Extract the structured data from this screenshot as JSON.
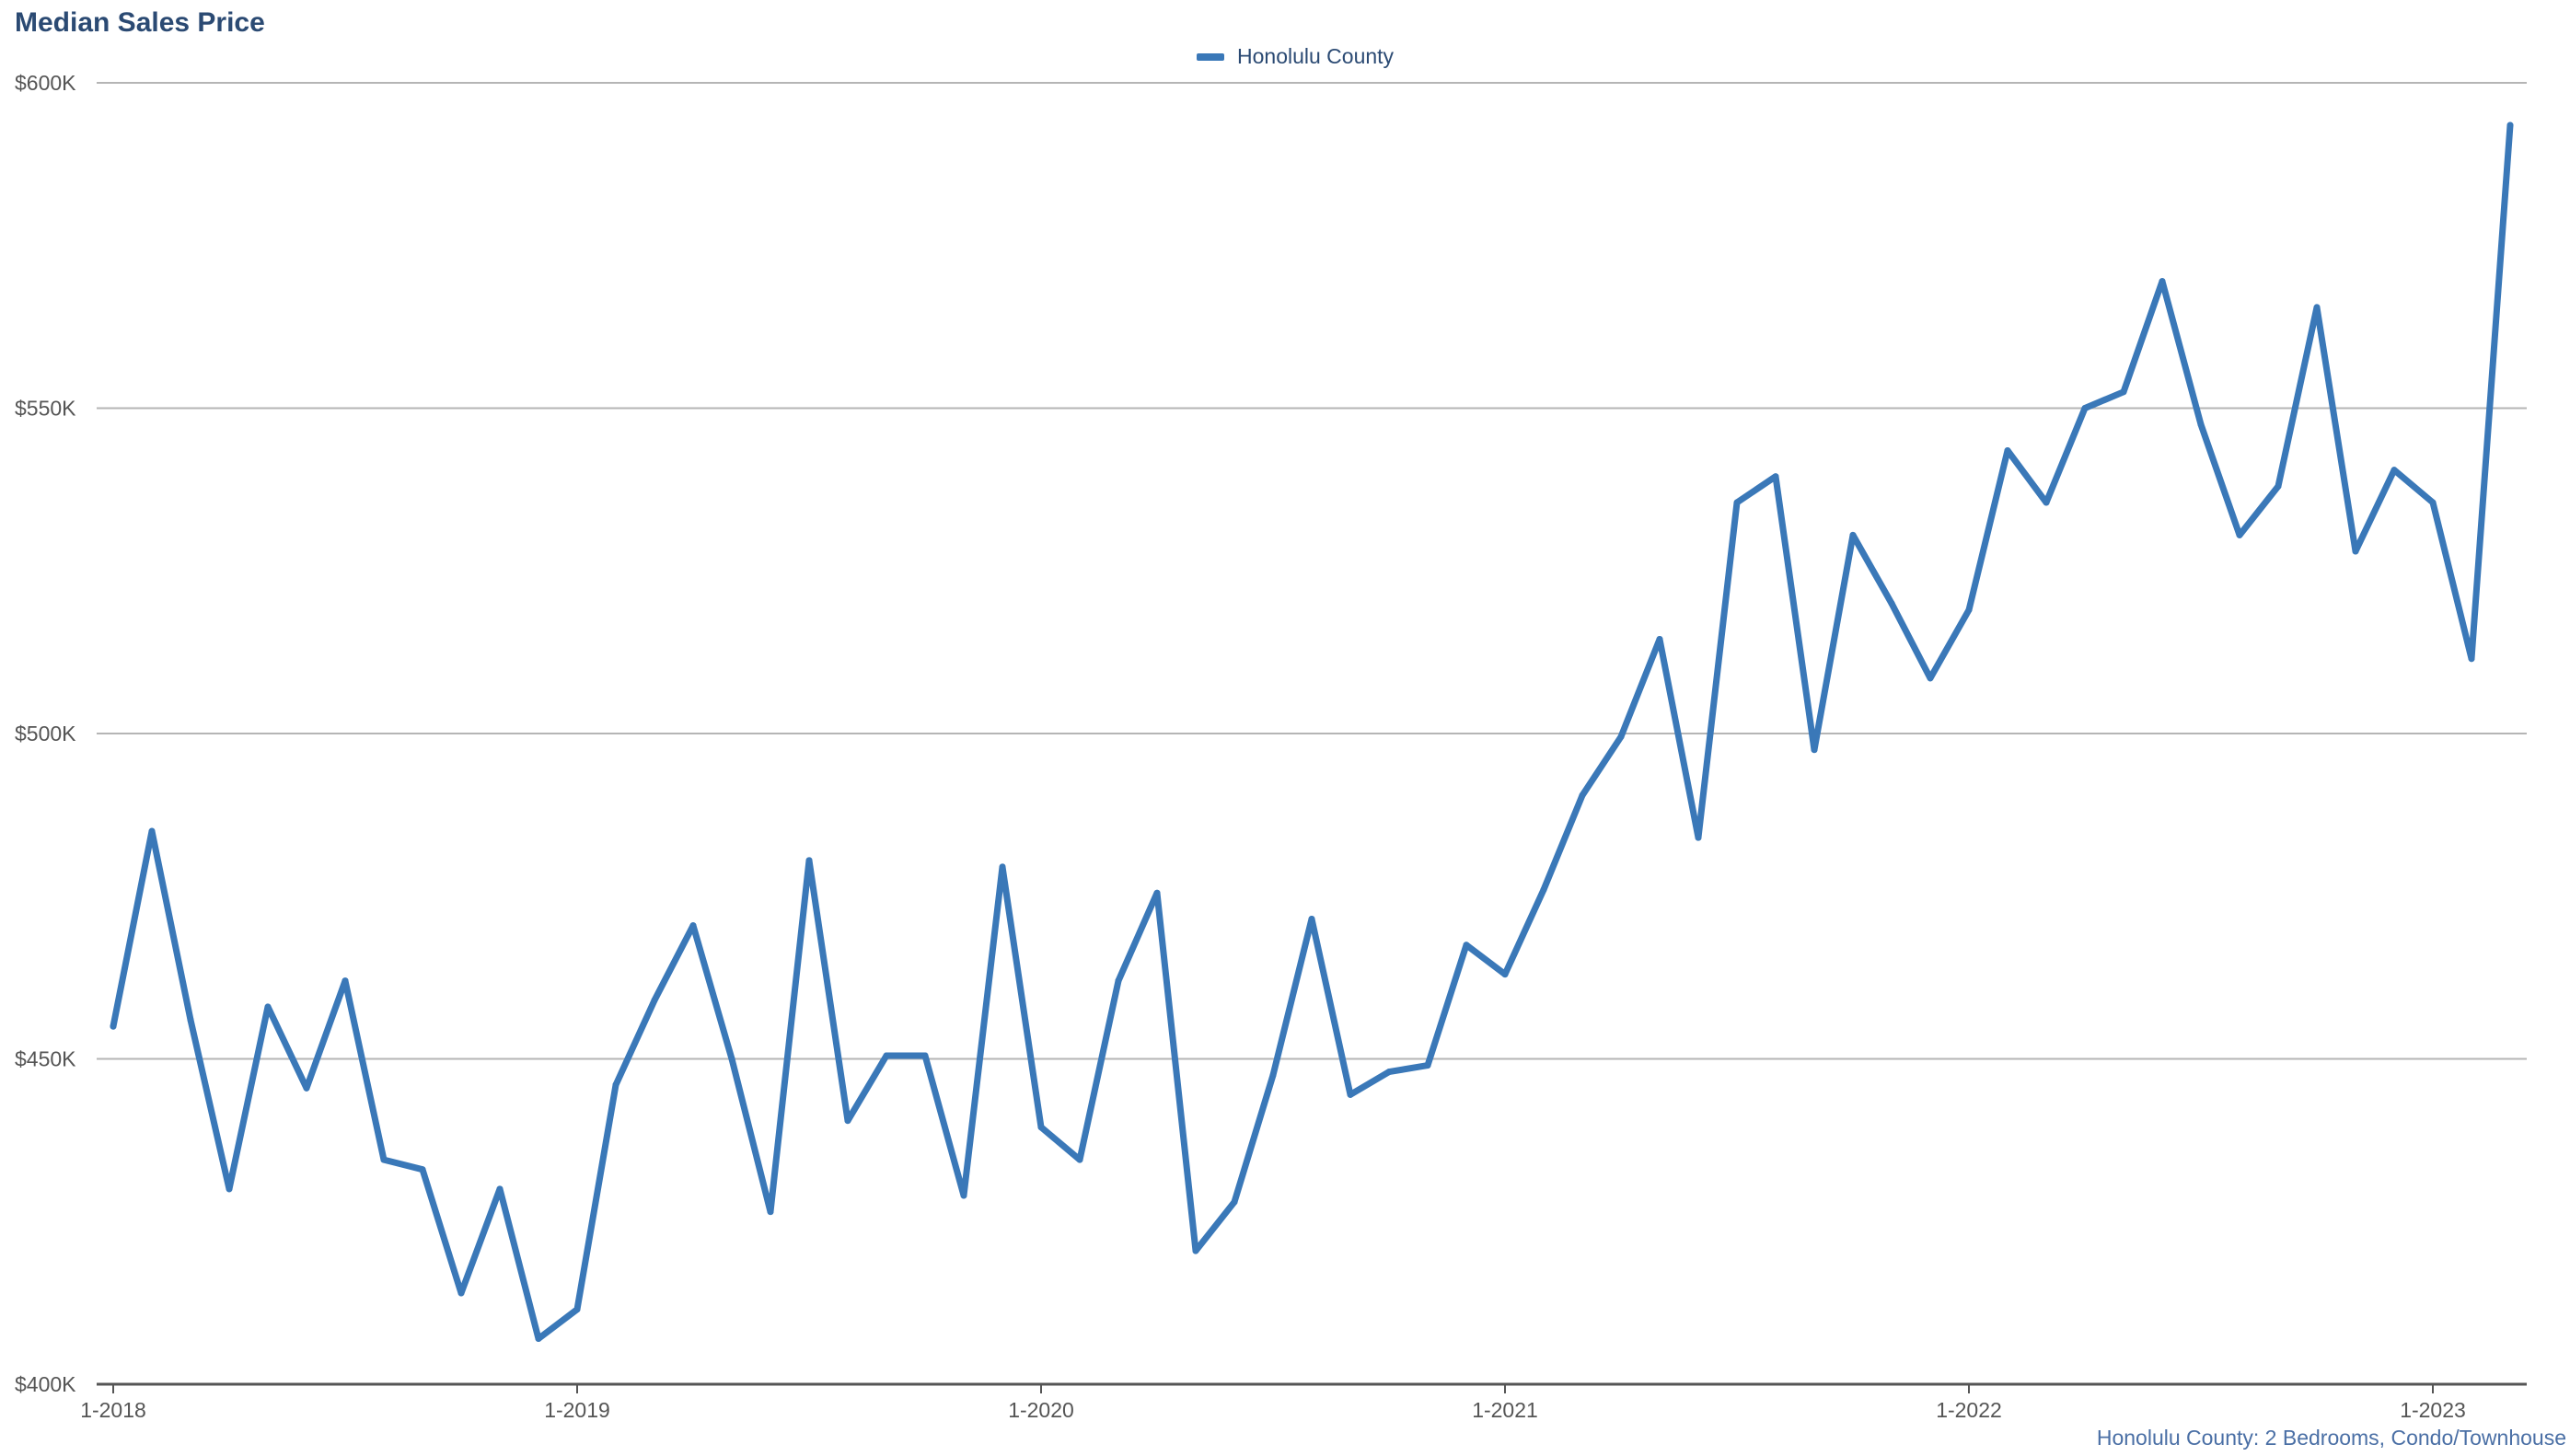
{
  "chart_data": {
    "type": "line",
    "title": "Median Sales Price",
    "caption": "Honolulu County: 2 Bedrooms, Condo/Townhouse",
    "xlabel": "",
    "ylabel": "",
    "ylim": [
      400000,
      600000
    ],
    "y_ticks": [
      {
        "value": 400000,
        "label": "$400K"
      },
      {
        "value": 450000,
        "label": "$450K"
      },
      {
        "value": 500000,
        "label": "$500K"
      },
      {
        "value": 550000,
        "label": "$550K"
      },
      {
        "value": 600000,
        "label": "$600K"
      }
    ],
    "x_ticks": [
      "1-2018",
      "1-2019",
      "1-2020",
      "1-2021",
      "1-2022",
      "1-2023"
    ],
    "x": [
      "1-2018",
      "2-2018",
      "3-2018",
      "4-2018",
      "5-2018",
      "6-2018",
      "7-2018",
      "8-2018",
      "9-2018",
      "10-2018",
      "11-2018",
      "12-2018",
      "1-2019",
      "2-2019",
      "3-2019",
      "4-2019",
      "5-2019",
      "6-2019",
      "7-2019",
      "8-2019",
      "9-2019",
      "10-2019",
      "11-2019",
      "12-2019",
      "1-2020",
      "2-2020",
      "3-2020",
      "4-2020",
      "5-2020",
      "6-2020",
      "7-2020",
      "8-2020",
      "9-2020",
      "10-2020",
      "11-2020",
      "12-2020",
      "1-2021",
      "2-2021",
      "3-2021",
      "4-2021",
      "5-2021",
      "6-2021",
      "7-2021",
      "8-2021",
      "9-2021",
      "10-2021",
      "11-2021",
      "12-2021",
      "1-2022",
      "2-2022",
      "3-2022",
      "4-2022",
      "5-2022",
      "6-2022",
      "7-2022",
      "8-2022",
      "9-2022",
      "10-2022",
      "11-2022",
      "12-2022",
      "1-2023",
      "2-2023",
      "3-2023"
    ],
    "grid": true,
    "legend_position": "top-center",
    "series": [
      {
        "name": "Honolulu County",
        "color": "#3a78b8",
        "values": [
          455000,
          485000,
          456000,
          430000,
          458000,
          445500,
          462000,
          434500,
          433000,
          414000,
          430000,
          407000,
          411500,
          446000,
          459000,
          470500,
          450000,
          426500,
          480500,
          440500,
          450500,
          450500,
          429000,
          479500,
          439500,
          434500,
          462000,
          475500,
          420500,
          428000,
          447500,
          471500,
          444500,
          448000,
          449000,
          467500,
          463000,
          476000,
          490500,
          499500,
          514500,
          484000,
          535500,
          539500,
          497500,
          530500,
          520000,
          508500,
          519000,
          543500,
          535500,
          550000,
          552500,
          569500,
          547500,
          530500,
          538000,
          565500,
          528000,
          540500,
          535500,
          511500,
          593500
        ]
      }
    ]
  }
}
